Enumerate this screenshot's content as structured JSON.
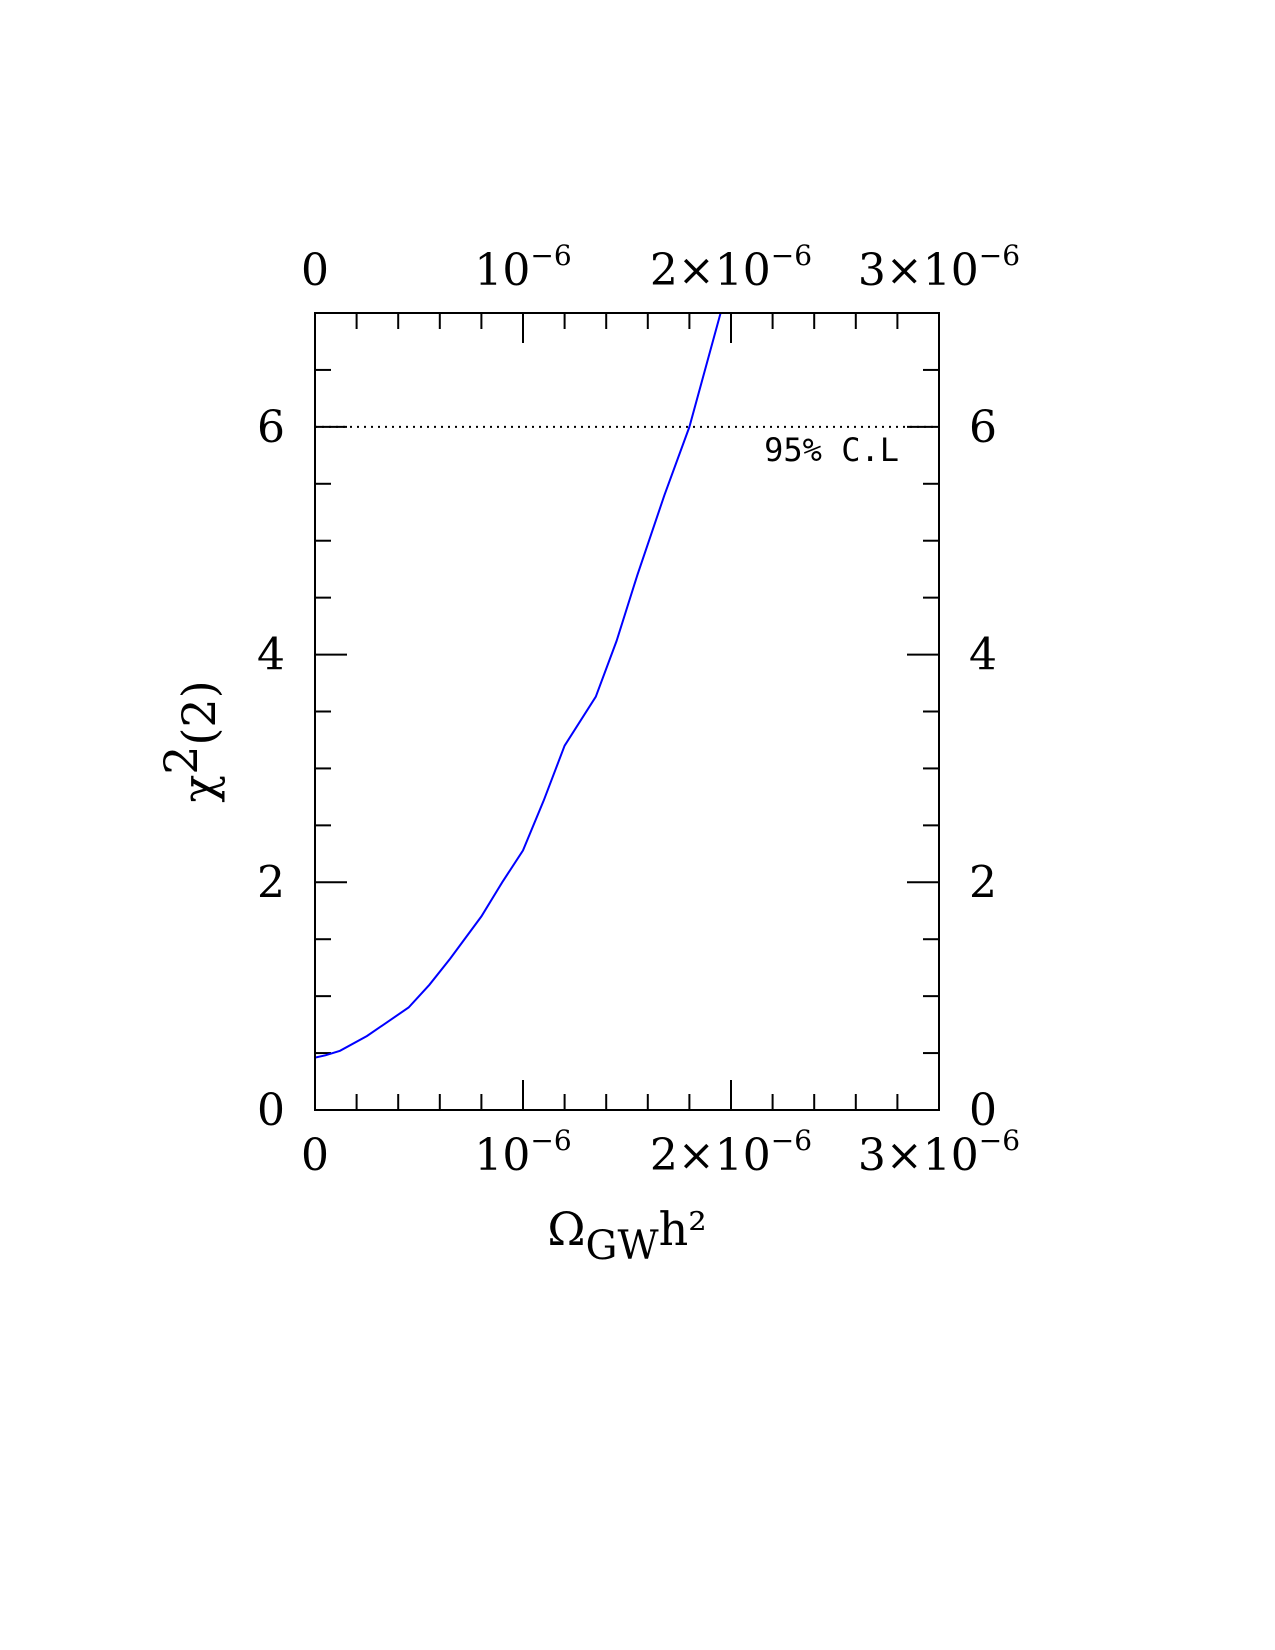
{
  "chart_data": {
    "type": "line",
    "title": "",
    "xlabel": "ΩGWh²",
    "xlabel_parts": {
      "omega": "Ω",
      "sub": "GW",
      "rest": "h²"
    },
    "ylabel": "χ2(2)",
    "ylabel_parts": {
      "chi": "χ",
      "sup": "2",
      "rest": "(2)"
    },
    "xlim": [
      0,
      3e-06
    ],
    "ylim": [
      0,
      7
    ],
    "x_ticks": [
      {
        "value": 0,
        "base": "0",
        "exp": ""
      },
      {
        "value": 1e-06,
        "base": "10",
        "exp": "−6"
      },
      {
        "value": 2e-06,
        "base": "2×10",
        "exp": "−6"
      },
      {
        "value": 3e-06,
        "base": "3×10",
        "exp": "−6"
      }
    ],
    "y_ticks": [
      {
        "value": 0,
        "label": "0"
      },
      {
        "value": 2,
        "label": "2"
      },
      {
        "value": 4,
        "label": "4"
      },
      {
        "value": 6,
        "label": "6"
      }
    ],
    "x_minor_step": 2e-07,
    "y_minor_step": 0.5,
    "grid": false,
    "series": [
      {
        "color": "#0000ff",
        "x": [
          0,
          5e-08,
          1.2e-07,
          2.5e-07,
          4.5e-07,
          5.5e-07,
          6.5e-07,
          8e-07,
          9e-07,
          1e-06,
          1.1e-06,
          1.2e-06,
          1.35e-06,
          1.45e-06,
          1.55e-06,
          1.68e-06,
          1.8e-06,
          1.95e-06
        ],
        "y": [
          0.46,
          0.48,
          0.52,
          0.65,
          0.9,
          1.1,
          1.33,
          1.7,
          2.0,
          2.28,
          2.72,
          3.2,
          3.63,
          4.12,
          4.7,
          5.4,
          6.0,
          7.0
        ]
      }
    ],
    "reference_line": {
      "y": 6,
      "style": "dotted",
      "label": "95% C.L"
    }
  }
}
